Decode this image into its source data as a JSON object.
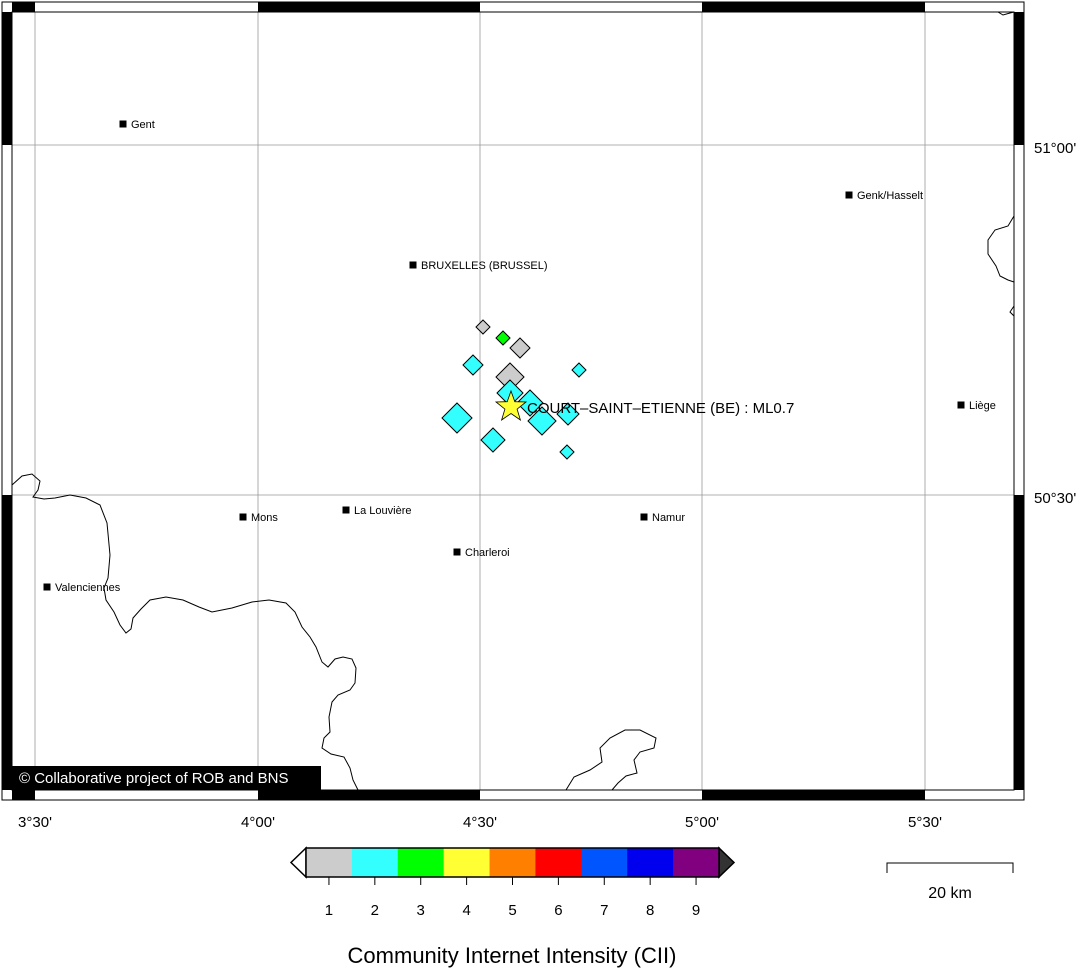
{
  "map": {
    "lon_labels": [
      "3°30'",
      "4°00'",
      "4°30'",
      "5°00'",
      "5°30'"
    ],
    "lat_labels": [
      "51°00'",
      "50°30'"
    ],
    "copyright": "© Collaborative project of ROB and BNS"
  },
  "cities": [
    {
      "name": "Gent"
    },
    {
      "name": "Genk/Hasselt"
    },
    {
      "name": "BRUXELLES (BRUSSEL)"
    },
    {
      "name": "Liège"
    },
    {
      "name": "Mons"
    },
    {
      "name": "La Louvière"
    },
    {
      "name": "Namur"
    },
    {
      "name": "Charleroi"
    },
    {
      "name": "Valenciennes"
    }
  ],
  "epicenter": {
    "label": "COURT–SAINT–ETIENNE (BE) : ML0.7",
    "color": "#ffff33"
  },
  "intensity_markers": [
    {
      "cii": 1
    },
    {
      "cii": 3
    },
    {
      "cii": 1
    },
    {
      "cii": 2
    },
    {
      "cii": 2
    },
    {
      "cii": 1
    },
    {
      "cii": 2
    },
    {
      "cii": 2
    },
    {
      "cii": 2
    },
    {
      "cii": 2
    },
    {
      "cii": 2
    },
    {
      "cii": 2
    },
    {
      "cii": 2
    }
  ],
  "colorbar": {
    "title": "Community Internet Intensity (CII)",
    "ticks": [
      "1",
      "2",
      "3",
      "4",
      "5",
      "6",
      "7",
      "8",
      "9"
    ],
    "colors": [
      "#cccccc",
      "#33ffff",
      "#00ff00",
      "#ffff33",
      "#ff7f00",
      "#ff0000",
      "#0055ff",
      "#0000ee",
      "#800080"
    ],
    "under_color": "#ffffff",
    "over_color": "#333333"
  },
  "scale_bar": {
    "label": "20 km"
  }
}
